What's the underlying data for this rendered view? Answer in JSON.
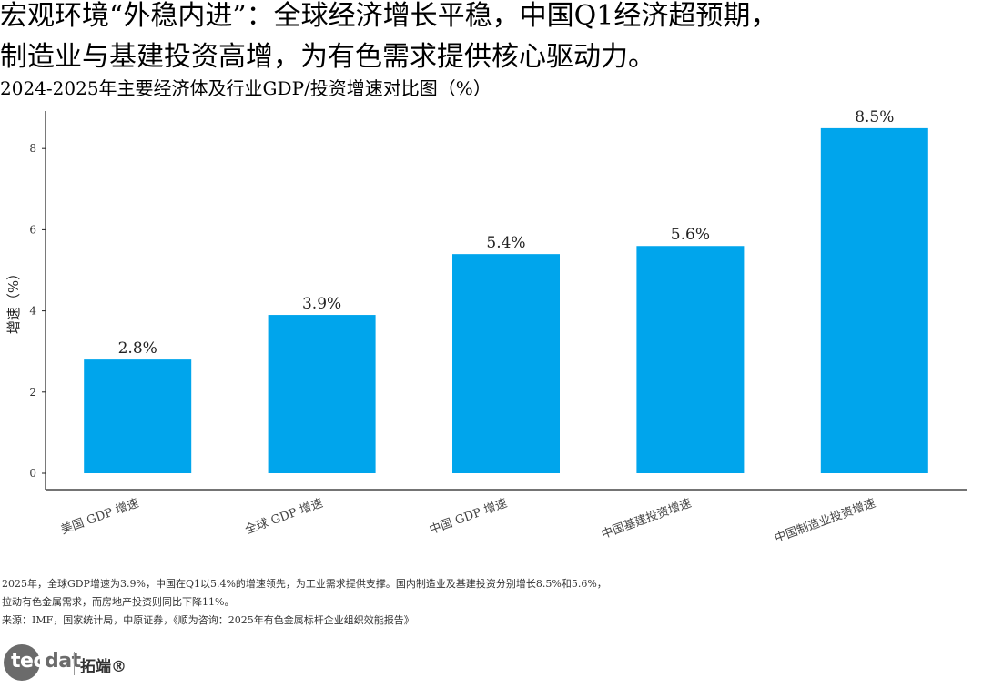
{
  "headline": {
    "line1": "宏观环境“外稳内进”：全球经济增长平稳，中国Q1经济超预期，",
    "line2": "制造业与基建投资高增，为有色需求提供核心驱动力。"
  },
  "chart_data": {
    "type": "bar",
    "title": "2024-2025年主要经济体及行业GDP/投资增速对比图（%）",
    "ylabel": "增速（%）",
    "xlabel": "",
    "categories": [
      "美国 GDP 增速",
      "全球 GDP 增速",
      "中国 GDP 增速",
      "中国基建投资增速",
      "中国制造业投资增速"
    ],
    "values": [
      2.8,
      3.9,
      5.4,
      5.6,
      8.5
    ],
    "value_labels": [
      "2.8%",
      "3.9%",
      "5.4%",
      "5.6%",
      "8.5%"
    ],
    "yticks": [
      0,
      2,
      4,
      6,
      8
    ],
    "ylim": [
      0,
      8.9
    ],
    "bar_color": "#00a5ec",
    "grid": false,
    "legend": "none"
  },
  "notes": {
    "line1": "2025年，全球GDP增速为3.9%，中国在Q1以5.4%的增速领先，为工业需求提供支撑。国内制造业及基建投资分别增长8.5%和5.6%，",
    "line2": "拉动有色金属需求，而房地产投资则同比下降11%。",
    "source": "来源：IMF，国家统计局，中原证券，《顺为咨询：2025年有色金属标杆企业组织效能报告》"
  },
  "logo": {
    "wordmark_tec": "tec",
    "wordmark_dat": "dat",
    "brand": "拓端®"
  }
}
